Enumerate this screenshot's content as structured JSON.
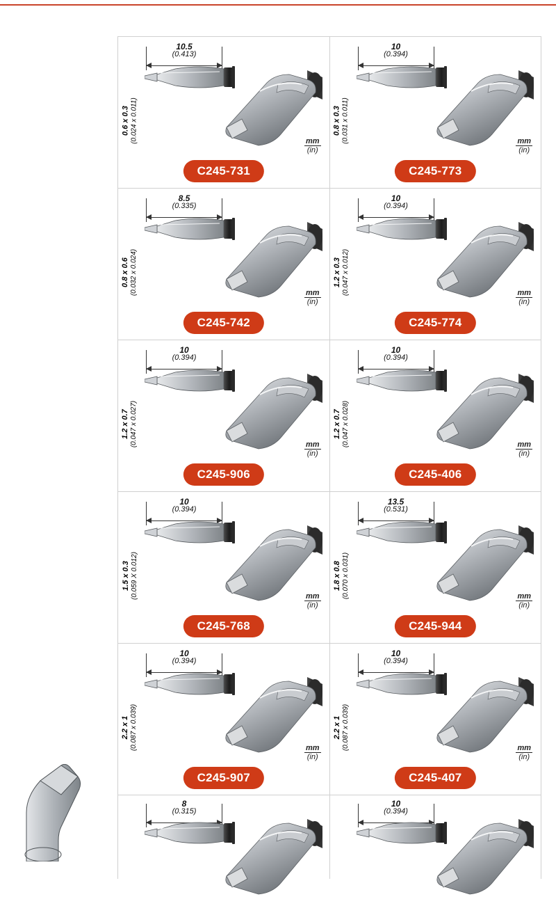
{
  "colors": {
    "accent": "#cf3b17",
    "rule": "#c9442a",
    "cell_border": "#d0d0d0",
    "metal_light": "#cfd2d6",
    "metal_mid": "#9ea3a9",
    "metal_dark": "#707579",
    "black": "#1a1a1a",
    "bg": "#ffffff"
  },
  "unit_label": {
    "top": "mm",
    "bottom": "(in)"
  },
  "grid": {
    "cols": 2,
    "rows": 6,
    "cell_border_color": "#d0d0d0"
  },
  "products": [
    {
      "part": "C245-731",
      "width_mm": "10.5",
      "width_in": "(0.413)",
      "height_mm": "0.6 x 0.3",
      "height_in": "(0.024 x 0.011)"
    },
    {
      "part": "C245-773",
      "width_mm": "10",
      "width_in": "(0.394)",
      "height_mm": "0.8 x 0.3",
      "height_in": "(0.031 x 0.011)"
    },
    {
      "part": "C245-742",
      "width_mm": "8.5",
      "width_in": "(0.335)",
      "height_mm": "0.8 x 0.6",
      "height_in": "(0.032 x 0.024)"
    },
    {
      "part": "C245-774",
      "width_mm": "10",
      "width_in": "(0.394)",
      "height_mm": "1.2 x 0.3",
      "height_in": "(0.047 x 0.012)"
    },
    {
      "part": "C245-906",
      "width_mm": "10",
      "width_in": "(0.394)",
      "height_mm": "1.2 x 0.7",
      "height_in": "(0.047 x 0.027)"
    },
    {
      "part": "C245-406",
      "width_mm": "10",
      "width_in": "(0.394)",
      "height_mm": "1.2 x 0.7",
      "height_in": "(0.047 x 0.028)"
    },
    {
      "part": "C245-768",
      "width_mm": "10",
      "width_in": "(0.394)",
      "height_mm": "1.5 x 0.3",
      "height_in": "(0.059 X 0.012)"
    },
    {
      "part": "C245-944",
      "width_mm": "13.5",
      "width_in": "(0.531)",
      "height_mm": "1.8 x 0.8",
      "height_in": "(0.070 x 0.031)"
    },
    {
      "part": "C245-907",
      "width_mm": "10",
      "width_in": "(0.394)",
      "height_mm": "2.2 x 1",
      "height_in": "(0.087 x 0.039)"
    },
    {
      "part": "C245-407",
      "width_mm": "10",
      "width_in": "(0.394)",
      "height_mm": "2.2 x 1",
      "height_in": "(0.087 x 0.039)"
    },
    {
      "part": "",
      "width_mm": "8",
      "width_in": "(0.315)",
      "height_mm": "",
      "height_in": ""
    },
    {
      "part": "",
      "width_mm": "10",
      "width_in": "(0.394)",
      "height_mm": "",
      "height_in": ""
    }
  ]
}
